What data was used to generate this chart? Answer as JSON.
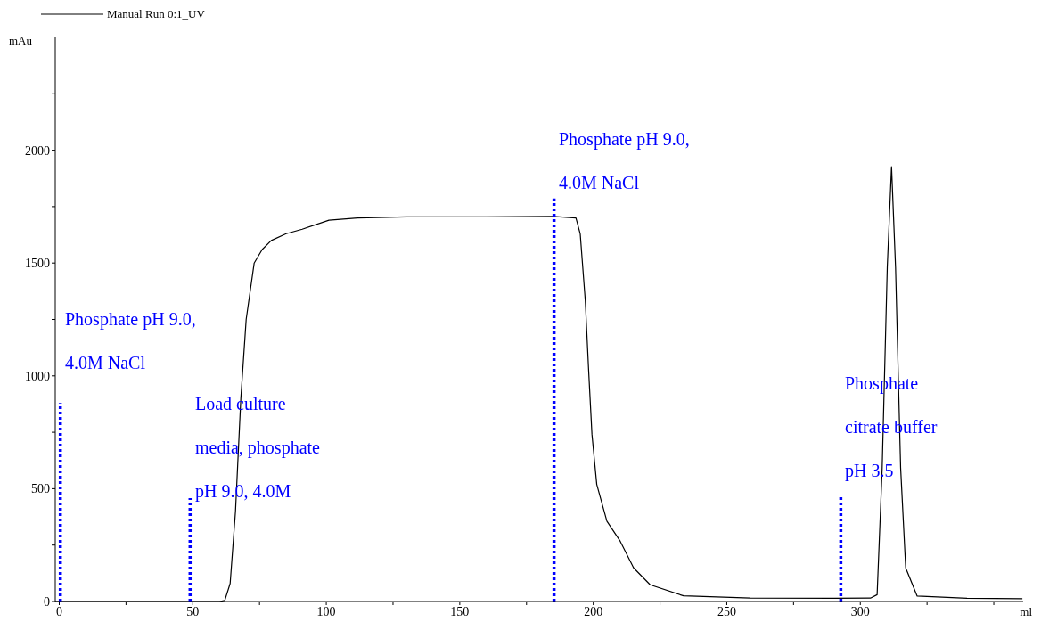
{
  "chart_data": {
    "type": "line",
    "xlabel": "ml",
    "ylabel": "mAu",
    "xlim": [
      -1.5,
      361
    ],
    "ylim": [
      0,
      2500
    ],
    "xticks": [
      0,
      {
        "value": 25,
        "label": null
      },
      50,
      {
        "value": 75,
        "label": null
      },
      100,
      {
        "value": 125,
        "label": null
      },
      150,
      {
        "value": 175,
        "label": null
      },
      200,
      {
        "value": 225,
        "label": null
      },
      250,
      {
        "value": 275,
        "label": null
      },
      300,
      {
        "value": 325,
        "label": null
      },
      {
        "value": 350,
        "label": null
      }
    ],
    "yticks": [
      0,
      {
        "value": 250,
        "label": null
      },
      500,
      {
        "value": 750,
        "label": null
      },
      1000,
      {
        "value": 1250,
        "label": null
      },
      1500,
      {
        "value": 1750,
        "label": null
      },
      2000,
      {
        "value": 2250,
        "label": null
      }
    ],
    "grid": false,
    "legend": "top left",
    "marker": "none",
    "series": [
      {
        "name": "Manual Run 0:1_UV",
        "color": "#000000",
        "line_style": "solid",
        "x": [
          -1.5,
          30,
          60,
          62,
          64,
          66,
          68,
          70,
          73,
          76,
          79.4,
          85,
          91,
          101,
          111.7,
          130,
          160,
          185,
          193.5,
          195.1,
          197,
          198.2,
          199.5,
          201.3,
          205.1,
          210.1,
          215.1,
          221.3,
          233.8,
          258.8,
          290,
          303.8,
          306.3,
          308.2,
          310.1,
          311.7,
          313.2,
          315.1,
          317,
          321.3,
          340,
          360.7
        ],
        "values": [
          0,
          0,
          0,
          5,
          80,
          400,
          900,
          1250,
          1500,
          1560,
          1600,
          1630,
          1650,
          1690,
          1700,
          1705,
          1705,
          1707,
          1700,
          1630,
          1334,
          1038,
          741,
          519,
          356,
          267,
          149,
          74,
          25,
          15,
          14,
          15,
          30,
          593,
          1482,
          1927,
          1482,
          593,
          149,
          24,
          14,
          12
        ]
      },
      {
        "color": "#0000ff",
        "line_style": "dotted",
        "x": [
          0.4,
          0.4
        ],
        "values": [
          0,
          880
        ]
      },
      {
        "color": "#0000ff",
        "line_style": "dotted",
        "x": [
          49,
          49
        ],
        "values": [
          0,
          458
        ]
      },
      {
        "color": "#0000ff",
        "line_style": "dotted",
        "x": [
          185.3,
          185.3
        ],
        "values": [
          0,
          1786
        ]
      },
      {
        "color": "#0000ff",
        "line_style": "dotted",
        "x": [
          292.7,
          292.7
        ],
        "values": [
          0,
          462
        ]
      }
    ],
    "annotations": [
      "Phosphate pH 9.0,",
      "4.0M NaCl",
      "Load culture",
      "media, phosphate",
      "pH 9.0, 4.0M",
      "Phosphate pH 9.0,",
      "4.0M NaCl",
      "Phosphate",
      "citrate buffer",
      "pH 3.5"
    ]
  }
}
